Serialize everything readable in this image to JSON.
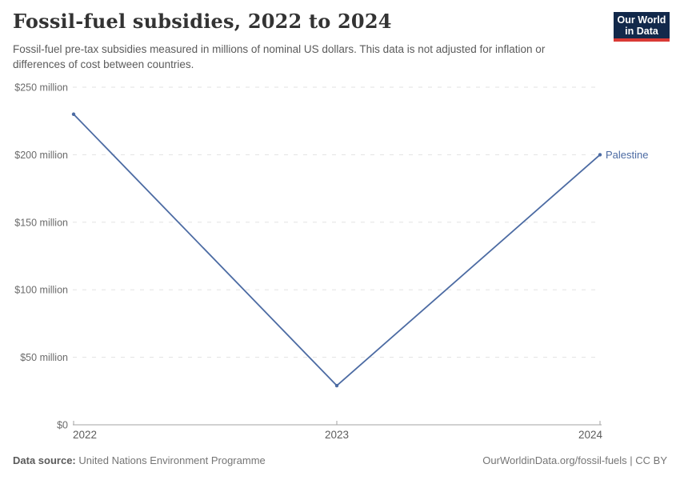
{
  "header": {
    "title": "Fossil-fuel subsidies, 2022 to 2024",
    "subtitle": "Fossil-fuel pre-tax subsidies measured in millions of nominal US dollars. This data is not adjusted for inflation or differences of cost between countries.",
    "logo": {
      "line1": "Our World",
      "line2": "in Data",
      "bg_color": "#12294b",
      "accent_color": "#d93a35"
    }
  },
  "chart_data": {
    "type": "line",
    "title": "Fossil-fuel subsidies, 2022 to 2024",
    "x": [
      2022,
      2023,
      2024
    ],
    "series": [
      {
        "name": "Palestine",
        "values": [
          230,
          29,
          200
        ],
        "color": "#4c6ba3"
      }
    ],
    "unit": "million US$ (nominal)",
    "xlabel": "",
    "ylabel": "",
    "ylim": [
      0,
      250
    ],
    "ytick_values": [
      0,
      50,
      100,
      150,
      200,
      250
    ],
    "ytick_labels": [
      "$0",
      "$50 million",
      "$100 million",
      "$150 million",
      "$200 million",
      "$250 million"
    ],
    "xtick_labels": [
      "2022",
      "2023",
      "2024"
    ],
    "grid": "horizontal-dashed",
    "legend_position": "end-of-line-label"
  },
  "footer": {
    "source_label": "Data source:",
    "source_value": "United Nations Environment Programme",
    "credit": "OurWorldinData.org/fossil-fuels | CC BY"
  }
}
